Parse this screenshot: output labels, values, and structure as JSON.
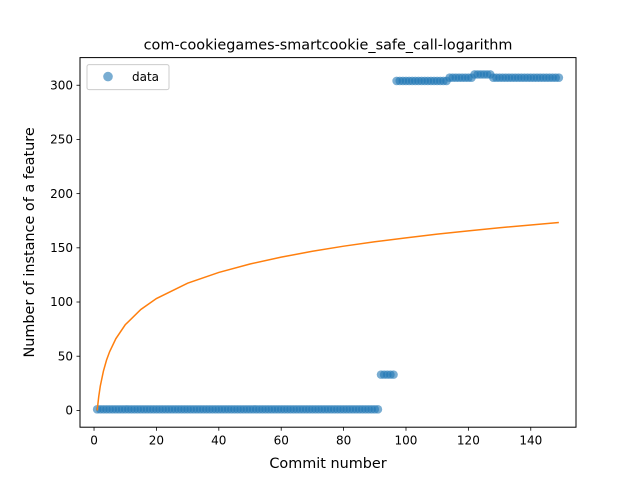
{
  "chart_data": {
    "type": "scatter",
    "title": "com-cookiegames-smartcookie_safe_call-logarithm",
    "xlabel": "Commit number",
    "ylabel": "Number of instance of a feature",
    "xlim": [
      -4.5,
      154.5
    ],
    "ylim": [
      -15.5,
      325.5
    ],
    "xticks": [
      0,
      20,
      40,
      60,
      80,
      100,
      120,
      140
    ],
    "yticks": [
      0,
      50,
      100,
      150,
      200,
      250,
      300
    ],
    "grid": false,
    "legend": {
      "placement": "top-left",
      "entries": [
        "data"
      ]
    },
    "series": [
      {
        "name": "data",
        "kind": "points",
        "color": "#1f77b4",
        "segments": [
          {
            "x_start": 1,
            "x_end": 91,
            "y": 1
          },
          {
            "x_start": 92,
            "x_end": 96,
            "y": 33
          },
          {
            "x_start": 97,
            "x_end": 113,
            "y": 304
          },
          {
            "x_start": 114,
            "x_end": 121,
            "y": 307
          },
          {
            "x_start": 122,
            "x_end": 127,
            "y": 310
          },
          {
            "x_start": 128,
            "x_end": 149,
            "y": 307
          }
        ]
      },
      {
        "kind": "line",
        "color": "#ff7f0e",
        "x": [
          1,
          1.5,
          2,
          3,
          4,
          5,
          7,
          10,
          15,
          20,
          30,
          40,
          50,
          60,
          70,
          80,
          90,
          100,
          110,
          120,
          130,
          140,
          149
        ],
        "y": [
          0,
          12.6,
          22.4,
          36.2,
          46.4,
          54.2,
          66.2,
          79.0,
          93.1,
          103.2,
          117.4,
          127.3,
          135.1,
          141.4,
          146.8,
          151.5,
          155.6,
          159.2,
          162.6,
          165.6,
          168.5,
          171.1,
          173.4
        ]
      }
    ]
  }
}
